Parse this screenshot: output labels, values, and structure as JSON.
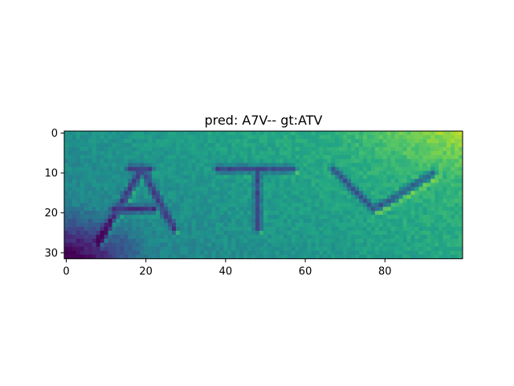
{
  "chart_data": {
    "type": "heatmap",
    "title": "pred: A7V-- gt:ATV",
    "image_shape": [
      32,
      100
    ],
    "xlim": [
      -0.5,
      99.5
    ],
    "ylim": [
      31.5,
      -0.5
    ],
    "x_ticks": [
      0,
      20,
      40,
      60,
      80
    ],
    "y_ticks": [
      0,
      10,
      20,
      30
    ],
    "x_tick_labels": [
      "0",
      "20",
      "40",
      "60",
      "80"
    ],
    "y_tick_labels": [
      "0",
      "10",
      "20",
      "30"
    ],
    "colormap": "viridis",
    "xlabel": "",
    "ylabel": "",
    "grid": false,
    "depicted_text": "ATV",
    "strokes": [
      {
        "char": "A",
        "segments": [
          [
            [
              8,
              27
            ],
            [
              19,
              9
            ]
          ],
          [
            [
              19,
              9
            ],
            [
              27,
              24
            ]
          ],
          [
            [
              12,
              19
            ],
            [
              22,
              19
            ]
          ],
          [
            [
              16,
              9
            ],
            [
              21,
              9
            ]
          ]
        ]
      },
      {
        "char": "T",
        "segments": [
          [
            [
              38,
              9
            ],
            [
              57,
              9
            ]
          ],
          [
            [
              48,
              10
            ],
            [
              48,
              24
            ]
          ]
        ]
      },
      {
        "char": "V",
        "segments": [
          [
            [
              67,
              9
            ],
            [
              77,
              19
            ]
          ],
          [
            [
              77,
              19
            ],
            [
              81,
              17
            ]
          ],
          [
            [
              81,
              17
            ],
            [
              92,
              10
            ]
          ]
        ]
      }
    ]
  }
}
